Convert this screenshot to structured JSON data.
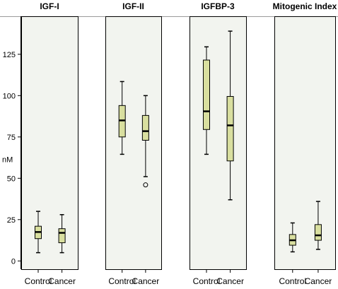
{
  "chart_data": {
    "type": "boxplot",
    "ylabel": "nM",
    "ylim": [
      -5,
      148
    ],
    "yticks": [
      0,
      25,
      50,
      75,
      100,
      125
    ],
    "categories": [
      "Control",
      "Cancer"
    ],
    "colors": {
      "box_fill": "#d9df9f",
      "panel_bg": "#f2f4ef",
      "frame": "#000000"
    },
    "panels": [
      {
        "title": "IGF-I",
        "boxes": [
          {
            "category": "Control",
            "whisker_low": 5,
            "q1": 13.5,
            "median": 17.5,
            "q3": 21,
            "whisker_high": 30,
            "outliers": []
          },
          {
            "category": "Cancer",
            "whisker_low": 5,
            "q1": 11,
            "median": 17,
            "q3": 19.5,
            "whisker_high": 28,
            "outliers": []
          }
        ]
      },
      {
        "title": "IGF-II",
        "boxes": [
          {
            "category": "Control",
            "whisker_low": 64.5,
            "q1": 75,
            "median": 85,
            "q3": 94,
            "whisker_high": 108.5,
            "outliers": []
          },
          {
            "category": "Cancer",
            "whisker_low": 51,
            "q1": 73,
            "median": 78.5,
            "q3": 88,
            "whisker_high": 100,
            "outliers": [
              46
            ]
          }
        ]
      },
      {
        "title": "IGFBP-3",
        "boxes": [
          {
            "category": "Control",
            "whisker_low": 64.5,
            "q1": 79.5,
            "median": 90.5,
            "q3": 121.5,
            "whisker_high": 129.5,
            "outliers": []
          },
          {
            "category": "Cancer",
            "whisker_low": 37,
            "q1": 60.5,
            "median": 82,
            "q3": 99.5,
            "whisker_high": 139,
            "outliers": []
          }
        ]
      },
      {
        "title": "Mitogenic Index",
        "boxes": [
          {
            "category": "Control",
            "whisker_low": 5.5,
            "q1": 9.5,
            "median": 12.5,
            "q3": 16,
            "whisker_high": 23,
            "outliers": []
          },
          {
            "category": "Cancer",
            "whisker_low": 7,
            "q1": 12.5,
            "median": 15.5,
            "q3": 22,
            "whisker_high": 36,
            "outliers": []
          }
        ]
      }
    ]
  }
}
